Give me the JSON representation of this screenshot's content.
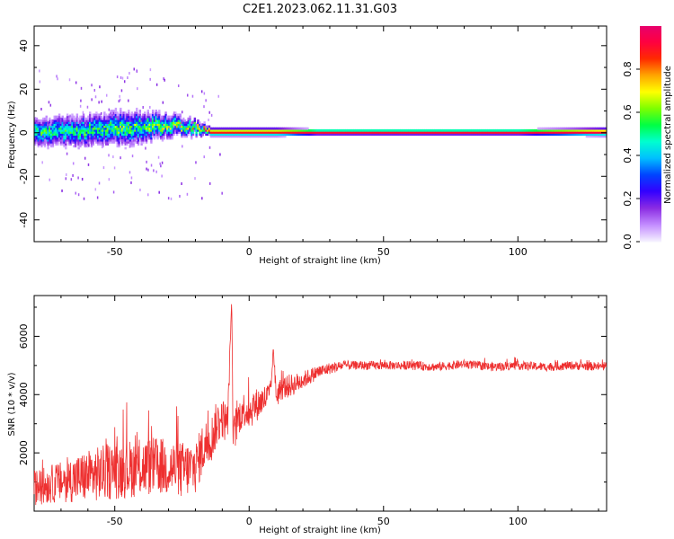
{
  "title": "C2E1.2023.062.11.31.G03",
  "colors": {
    "snr_line": "#ee3030",
    "colorbar": [
      "#f4f0ff",
      "#c28bff",
      "#8a2be2",
      "#3300ff",
      "#0044ff",
      "#00bfff",
      "#00ffd0",
      "#00ff44",
      "#7dff00",
      "#ffff00",
      "#ffa500",
      "#ff2a00",
      "#ff0040",
      "#e6006e"
    ]
  },
  "chart_data": [
    {
      "type": "heatmap",
      "id": "spectrogram",
      "title": "",
      "xlabel": "Height of straight line (km)",
      "ylabel": "Frequency (Hz)",
      "xlim": [
        -80,
        133
      ],
      "ylim": [
        -50,
        49
      ],
      "xticks": [
        -50,
        0,
        50,
        100
      ],
      "yticks": [
        -40,
        -20,
        0,
        20,
        40
      ],
      "colorbar": {
        "label": "Normalized spectral amplitude",
        "range": [
          0.0,
          1.0
        ],
        "ticks": [
          0.0,
          0.2,
          0.4,
          0.6,
          0.8
        ],
        "colormap": "rainbow (white-purple-blue-cyan-green-yellow-red-pink)"
      },
      "description_points": {
        "x": [
          -80,
          -60,
          -45,
          -30,
          -20,
          -15,
          -10,
          0,
          10,
          25,
          50,
          100,
          133
        ],
        "center_frequency": [
          0,
          1,
          2,
          3,
          2,
          0,
          0,
          0,
          0,
          0,
          0,
          0,
          0
        ],
        "spread_hz": [
          10,
          11,
          12,
          8,
          5,
          3,
          3,
          3,
          3,
          2,
          2,
          2,
          3
        ],
        "peak_amplitude": [
          0.5,
          0.5,
          0.55,
          0.6,
          0.7,
          0.9,
          0.9,
          0.9,
          0.9,
          0.95,
          0.95,
          0.95,
          0.95
        ]
      }
    },
    {
      "type": "line",
      "id": "snr",
      "title": "",
      "xlabel": "Height of straight line (km)",
      "ylabel": "SNR (10 * v/v)",
      "xlim": [
        -80,
        133
      ],
      "ylim": [
        0,
        7400
      ],
      "xticks": [
        -50,
        0,
        50,
        100
      ],
      "yticks": [
        2000,
        4000,
        6000
      ],
      "series": [
        {
          "x": [
            -80,
            -75,
            -70,
            -65,
            -60,
            -55,
            -50,
            -45,
            -40,
            -35,
            -30,
            -25,
            -20,
            -17,
            -14,
            -12,
            -10,
            -8,
            -6.5,
            -6,
            -4,
            -2,
            0,
            2,
            5,
            8,
            9,
            10,
            12,
            15,
            18,
            20,
            25,
            30,
            35,
            40,
            50,
            60,
            70,
            80,
            90,
            100,
            110,
            120,
            133
          ],
          "y": [
            800,
            900,
            1000,
            1100,
            1200,
            1300,
            1400,
            1450,
            1500,
            1550,
            1500,
            1400,
            1500,
            2200,
            2500,
            3000,
            3200,
            3000,
            7300,
            2500,
            3200,
            3500,
            3400,
            3600,
            3800,
            4000,
            5600,
            4000,
            4200,
            4300,
            4400,
            4500,
            4750,
            4900,
            5000,
            5000,
            5000,
            5000,
            4950,
            5050,
            4950,
            5000,
            4950,
            5000,
            4950
          ],
          "noise_amplitude": [
            600,
            650,
            700,
            800,
            900,
            950,
            1000,
            1000,
            1000,
            1000,
            1000,
            1000,
            900,
            900,
            800,
            800,
            700,
            700,
            0,
            700,
            600,
            600,
            600,
            600,
            500,
            500,
            0,
            500,
            400,
            400,
            350,
            300,
            250,
            200,
            170,
            150,
            150,
            150,
            150,
            150,
            150,
            150,
            150,
            150,
            150
          ]
        }
      ]
    }
  ]
}
